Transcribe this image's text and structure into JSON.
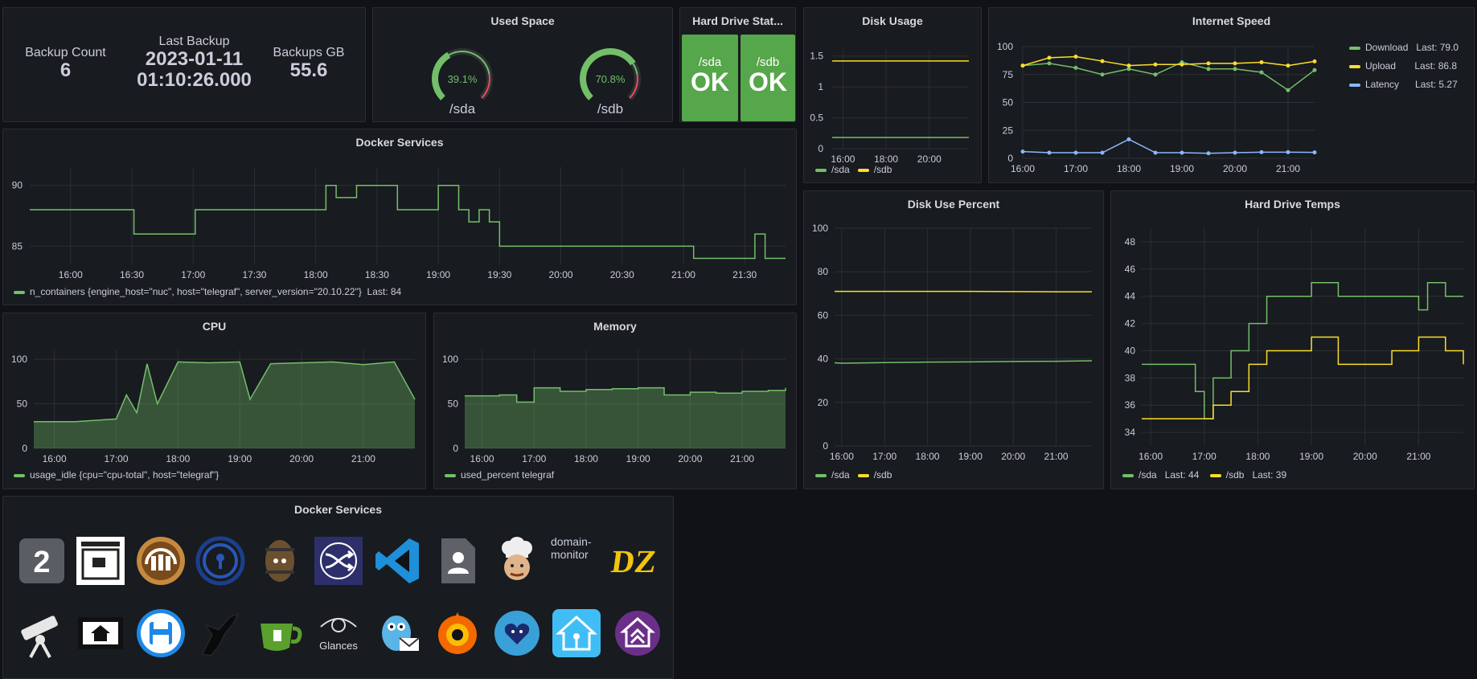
{
  "colors": {
    "green": "#73bf69",
    "yellow": "#fade2a",
    "blue": "#8ab8ff",
    "ok": "#56a64b",
    "red": "#f2495c"
  },
  "stats": {
    "backup_count_label": "Backup Count",
    "backup_count_value": "6",
    "last_backup_label": "Last Backup",
    "last_backup_date": "2023-01-11",
    "last_backup_time": "01:10:26.000",
    "backups_gb_label": "Backups GB",
    "backups_gb_value": "55.6"
  },
  "used_space": {
    "title": "Used Space",
    "gauges": [
      {
        "device": "/sda",
        "value_text": "39.1%",
        "value": 39.1
      },
      {
        "device": "/sdb",
        "value_text": "70.8%",
        "value": 70.8
      }
    ]
  },
  "hard_drive_status": {
    "title": "Hard Drive Stat...",
    "items": [
      {
        "device": "/sda",
        "status": "OK"
      },
      {
        "device": "/sdb",
        "status": "OK"
      }
    ]
  },
  "disk_usage": {
    "title": "Disk Usage",
    "legend": [
      "/sda",
      "/sdb"
    ]
  },
  "internet_speed": {
    "title": "Internet Speed",
    "legend": [
      {
        "name": "Download",
        "last": "Last: 79.0"
      },
      {
        "name": "Upload",
        "last": "Last: 86.8"
      },
      {
        "name": "Latency",
        "last": "Last: 5.27"
      }
    ]
  },
  "docker_services_chart": {
    "title": "Docker Services",
    "legend": "n_containers {engine_host=\"nuc\", host=\"telegraf\", server_version=\"20.10.22\"}",
    "legend_last": "Last: 84"
  },
  "disk_use_percent": {
    "title": "Disk Use Percent",
    "legend": [
      "/sda",
      "/sdb"
    ]
  },
  "hard_drive_temps": {
    "title": "Hard Drive Temps",
    "legend": [
      {
        "name": "/sda",
        "last": "Last: 44"
      },
      {
        "name": "/sdb",
        "last": "Last: 39"
      }
    ]
  },
  "cpu": {
    "title": "CPU",
    "legend": "usage_idle {cpu=\"cpu-total\", host=\"telegraf\"}"
  },
  "memory": {
    "title": "Memory",
    "legend": "used_percent telegraf"
  },
  "docker_services_icons": {
    "title": "Docker Services",
    "broken_image_alt": "domain-monitor",
    "number_icon_text": "2",
    "glances_text": "Glances",
    "dz_text": "DZ"
  },
  "chart_data": [
    {
      "type": "line",
      "title": "Disk Usage",
      "x": [
        "15:30",
        "16:00",
        "17:00",
        "18:00",
        "19:00",
        "20:00",
        "21:00",
        "21:50"
      ],
      "series": [
        {
          "name": "/sda",
          "values": [
            0.18,
            0.18,
            0.18,
            0.18,
            0.18,
            0.18,
            0.18,
            0.18
          ]
        },
        {
          "name": "/sdb",
          "values": [
            1.42,
            1.42,
            1.42,
            1.42,
            1.42,
            1.42,
            1.42,
            1.42
          ]
        }
      ],
      "ylim": [
        0,
        1.6
      ],
      "yticks": [
        0,
        0.5,
        1,
        1.5
      ],
      "xticks": [
        "16:00",
        "18:00",
        "20:00"
      ]
    },
    {
      "type": "line",
      "title": "Internet Speed",
      "x": [
        "16:00",
        "16:30",
        "17:00",
        "17:30",
        "18:00",
        "18:30",
        "19:00",
        "19:30",
        "20:00",
        "20:30",
        "21:00",
        "21:30"
      ],
      "series": [
        {
          "name": "Download",
          "values": [
            83,
            85,
            81,
            75,
            80,
            75,
            86,
            80,
            80,
            77,
            61,
            79
          ]
        },
        {
          "name": "Upload",
          "values": [
            83,
            90,
            91,
            87,
            83,
            84,
            84,
            85,
            85,
            86,
            83,
            86.8
          ]
        },
        {
          "name": "Latency",
          "values": [
            6,
            5,
            5,
            5,
            17,
            5,
            5,
            4.5,
            5,
            5.5,
            5.5,
            5.27
          ]
        }
      ],
      "ylim": [
        0,
        100
      ],
      "yticks": [
        0,
        25,
        50,
        75,
        100
      ],
      "xticks": [
        "16:00",
        "17:00",
        "18:00",
        "19:00",
        "20:00",
        "21:00"
      ]
    },
    {
      "type": "line",
      "title": "Docker Services",
      "x": [
        "15:40",
        "16:30",
        "16:31",
        "17:00",
        "17:01",
        "18:00",
        "18:05",
        "18:10",
        "18:20",
        "18:25",
        "18:30",
        "18:40",
        "19:00",
        "19:10",
        "19:15",
        "19:20",
        "19:25",
        "19:30",
        "20:30",
        "21:00",
        "21:05",
        "21:30",
        "21:35",
        "21:40",
        "21:50"
      ],
      "series": [
        {
          "name": "n_containers",
          "values": [
            88,
            88,
            86,
            86,
            88,
            88,
            90,
            89,
            90,
            90,
            90,
            88,
            90,
            88,
            87,
            88,
            87,
            85,
            85,
            85,
            84,
            84,
            86,
            84,
            84
          ]
        }
      ],
      "ylim": [
        83.5,
        91.5
      ],
      "yticks": [
        85,
        90
      ],
      "xticks": [
        "16:00",
        "16:30",
        "17:00",
        "17:30",
        "18:00",
        "18:30",
        "19:00",
        "19:30",
        "20:00",
        "20:30",
        "21:00",
        "21:30"
      ]
    },
    {
      "type": "line",
      "title": "Disk Use Percent",
      "x": [
        "15:50",
        "16:00",
        "17:00",
        "18:00",
        "19:00",
        "20:00",
        "21:00",
        "21:50"
      ],
      "series": [
        {
          "name": "/sda",
          "values": [
            38.2,
            38.0,
            38.3,
            38.5,
            38.6,
            38.8,
            38.9,
            39.1
          ]
        },
        {
          "name": "/sdb",
          "values": [
            71.0,
            71.0,
            71.0,
            71.0,
            71.0,
            70.9,
            70.8,
            70.8
          ]
        }
      ],
      "ylim": [
        0,
        100
      ],
      "yticks": [
        0,
        20,
        40,
        60,
        80,
        100
      ],
      "xticks": [
        "16:00",
        "17:00",
        "18:00",
        "19:00",
        "20:00",
        "21:00"
      ]
    },
    {
      "type": "line",
      "title": "Hard Drive Temps",
      "x": [
        "15:50",
        "16:30",
        "16:50",
        "17:00",
        "17:10",
        "17:30",
        "17:50",
        "18:10",
        "18:30",
        "19:00",
        "19:30",
        "20:00",
        "20:30",
        "20:50",
        "21:00",
        "21:10",
        "21:30",
        "21:50"
      ],
      "series": [
        {
          "name": "/sda",
          "values": [
            39,
            39,
            37,
            35,
            38,
            40,
            42,
            44,
            44,
            45,
            44,
            44,
            44,
            44,
            43,
            45,
            44,
            44
          ]
        },
        {
          "name": "/sdb",
          "values": [
            35,
            35,
            35,
            35,
            36,
            37,
            39,
            40,
            40,
            41,
            39,
            39,
            40,
            40,
            41,
            41,
            40,
            39
          ]
        }
      ],
      "ylim": [
        33,
        49
      ],
      "yticks": [
        34,
        36,
        38,
        40,
        42,
        44,
        46,
        48
      ],
      "xticks": [
        "16:00",
        "17:00",
        "18:00",
        "19:00",
        "20:00",
        "21:00"
      ]
    },
    {
      "type": "area",
      "title": "CPU",
      "x": [
        "15:40",
        "16:20",
        "17:00",
        "17:10",
        "17:20",
        "17:30",
        "17:40",
        "18:00",
        "18:30",
        "19:00",
        "19:10",
        "19:30",
        "20:00",
        "20:30",
        "21:00",
        "21:30",
        "21:50"
      ],
      "series": [
        {
          "name": "usage_idle",
          "values": [
            30,
            30,
            33,
            60,
            40,
            95,
            50,
            97,
            96,
            97,
            55,
            95,
            96,
            97,
            94,
            97,
            55
          ]
        }
      ],
      "ylim": [
        0,
        110
      ],
      "yticks": [
        0,
        50,
        100
      ],
      "xticks": [
        "16:00",
        "17:00",
        "18:00",
        "19:00",
        "20:00",
        "21:00"
      ]
    },
    {
      "type": "area",
      "title": "Memory",
      "x": [
        "15:40",
        "16:20",
        "16:40",
        "17:00",
        "17:30",
        "18:00",
        "18:30",
        "19:00",
        "19:30",
        "20:00",
        "20:30",
        "21:00",
        "21:30",
        "21:50"
      ],
      "series": [
        {
          "name": "used_percent",
          "values": [
            59,
            60,
            52,
            68,
            64,
            66,
            67,
            68,
            60,
            63,
            62,
            64,
            65,
            68
          ]
        }
      ],
      "ylim": [
        0,
        110
      ],
      "yticks": [
        0,
        50,
        100
      ],
      "xticks": [
        "16:00",
        "17:00",
        "18:00",
        "19:00",
        "20:00",
        "21:00"
      ]
    }
  ]
}
